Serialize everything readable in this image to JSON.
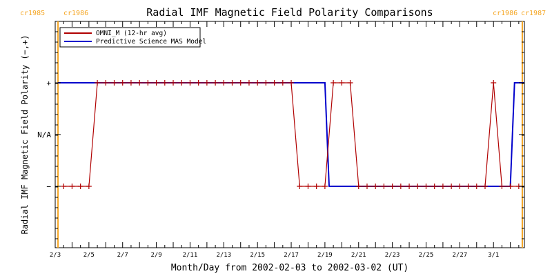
{
  "chart_data": {
    "type": "line",
    "title": "Radial IMF Magnetic Field Polarity Comparisons",
    "xlabel": "Month/Day from 2002-02-03 to 2002-03-02 (UT)",
    "ylabel": "Radial IMF Magnetic Field Polarity (−,+)",
    "xlim": [
      "2002-02-03 00:00",
      "2002-03-02 20:00"
    ],
    "x_tick_labels": [
      "2/3",
      "2/5",
      "2/7",
      "2/9",
      "2/11",
      "2/13",
      "2/15",
      "2/17",
      "2/19",
      "2/21",
      "2/23",
      "2/25",
      "2/27",
      "3/1"
    ],
    "y_tick_labels": [
      "+",
      "N/A",
      "−"
    ],
    "grid": false,
    "legend_position": "top-left",
    "carrington_markers": [
      {
        "date": "2002-02-03 04:00",
        "left_label": "cr1985",
        "right_label": "cr1986",
        "color": "#f5a623"
      },
      {
        "date": "2002-03-02 17:00",
        "left_label": "cr1986",
        "right_label": "cr1987",
        "color": "#f5a623"
      }
    ],
    "series": [
      {
        "name": "OMNI_M (12-hr avg)",
        "color": "#b00000",
        "markers": true,
        "x": [
          "2002-02-03 12:00",
          "2002-02-04 00:00",
          "2002-02-04 12:00",
          "2002-02-05 00:00",
          "2002-02-05 12:00",
          "2002-02-06 00:00",
          "2002-02-06 12:00",
          "2002-02-07 00:00",
          "2002-02-07 12:00",
          "2002-02-08 00:00",
          "2002-02-08 12:00",
          "2002-02-09 00:00",
          "2002-02-09 12:00",
          "2002-02-10 00:00",
          "2002-02-10 12:00",
          "2002-02-11 00:00",
          "2002-02-11 12:00",
          "2002-02-12 00:00",
          "2002-02-12 12:00",
          "2002-02-13 00:00",
          "2002-02-13 12:00",
          "2002-02-14 00:00",
          "2002-02-14 12:00",
          "2002-02-15 00:00",
          "2002-02-15 12:00",
          "2002-02-16 00:00",
          "2002-02-16 12:00",
          "2002-02-17 00:00",
          "2002-02-17 12:00",
          "2002-02-18 00:00",
          "2002-02-18 12:00",
          "2002-02-19 00:00",
          "2002-02-19 12:00",
          "2002-02-20 00:00",
          "2002-02-20 12:00",
          "2002-02-21 00:00",
          "2002-02-21 12:00",
          "2002-02-22 00:00",
          "2002-02-22 12:00",
          "2002-02-23 00:00",
          "2002-02-23 12:00",
          "2002-02-24 00:00",
          "2002-02-24 12:00",
          "2002-02-25 00:00",
          "2002-02-25 12:00",
          "2002-02-26 00:00",
          "2002-02-26 12:00",
          "2002-02-27 00:00",
          "2002-02-27 12:00",
          "2002-02-28 00:00",
          "2002-02-28 12:00",
          "2002-03-01 00:00",
          "2002-03-01 12:00",
          "2002-03-02 00:00",
          "2002-03-02 12:00",
          "2002-03-03 00:00"
        ],
        "y": [
          -1,
          -1,
          -1,
          -1,
          1,
          1,
          1,
          1,
          1,
          1,
          1,
          1,
          1,
          1,
          1,
          1,
          1,
          1,
          1,
          1,
          1,
          1,
          1,
          1,
          1,
          1,
          1,
          1,
          -1,
          -1,
          -1,
          -1,
          1,
          1,
          1,
          -1,
          -1,
          -1,
          -1,
          -1,
          -1,
          -1,
          -1,
          -1,
          -1,
          -1,
          -1,
          -1,
          -1,
          -1,
          -1,
          1,
          -1,
          -1,
          -1,
          -1
        ]
      },
      {
        "name": "Predictive Science MAS Model",
        "color": "#0000cc",
        "markers": false,
        "x": [
          "2002-02-03 04:00",
          "2002-02-19 00:00",
          "2002-02-19 06:00",
          "2002-03-02 00:00",
          "2002-03-02 06:00",
          "2002-03-03 00:00"
        ],
        "y": [
          1,
          1,
          -1,
          -1,
          1,
          1
        ]
      }
    ]
  }
}
